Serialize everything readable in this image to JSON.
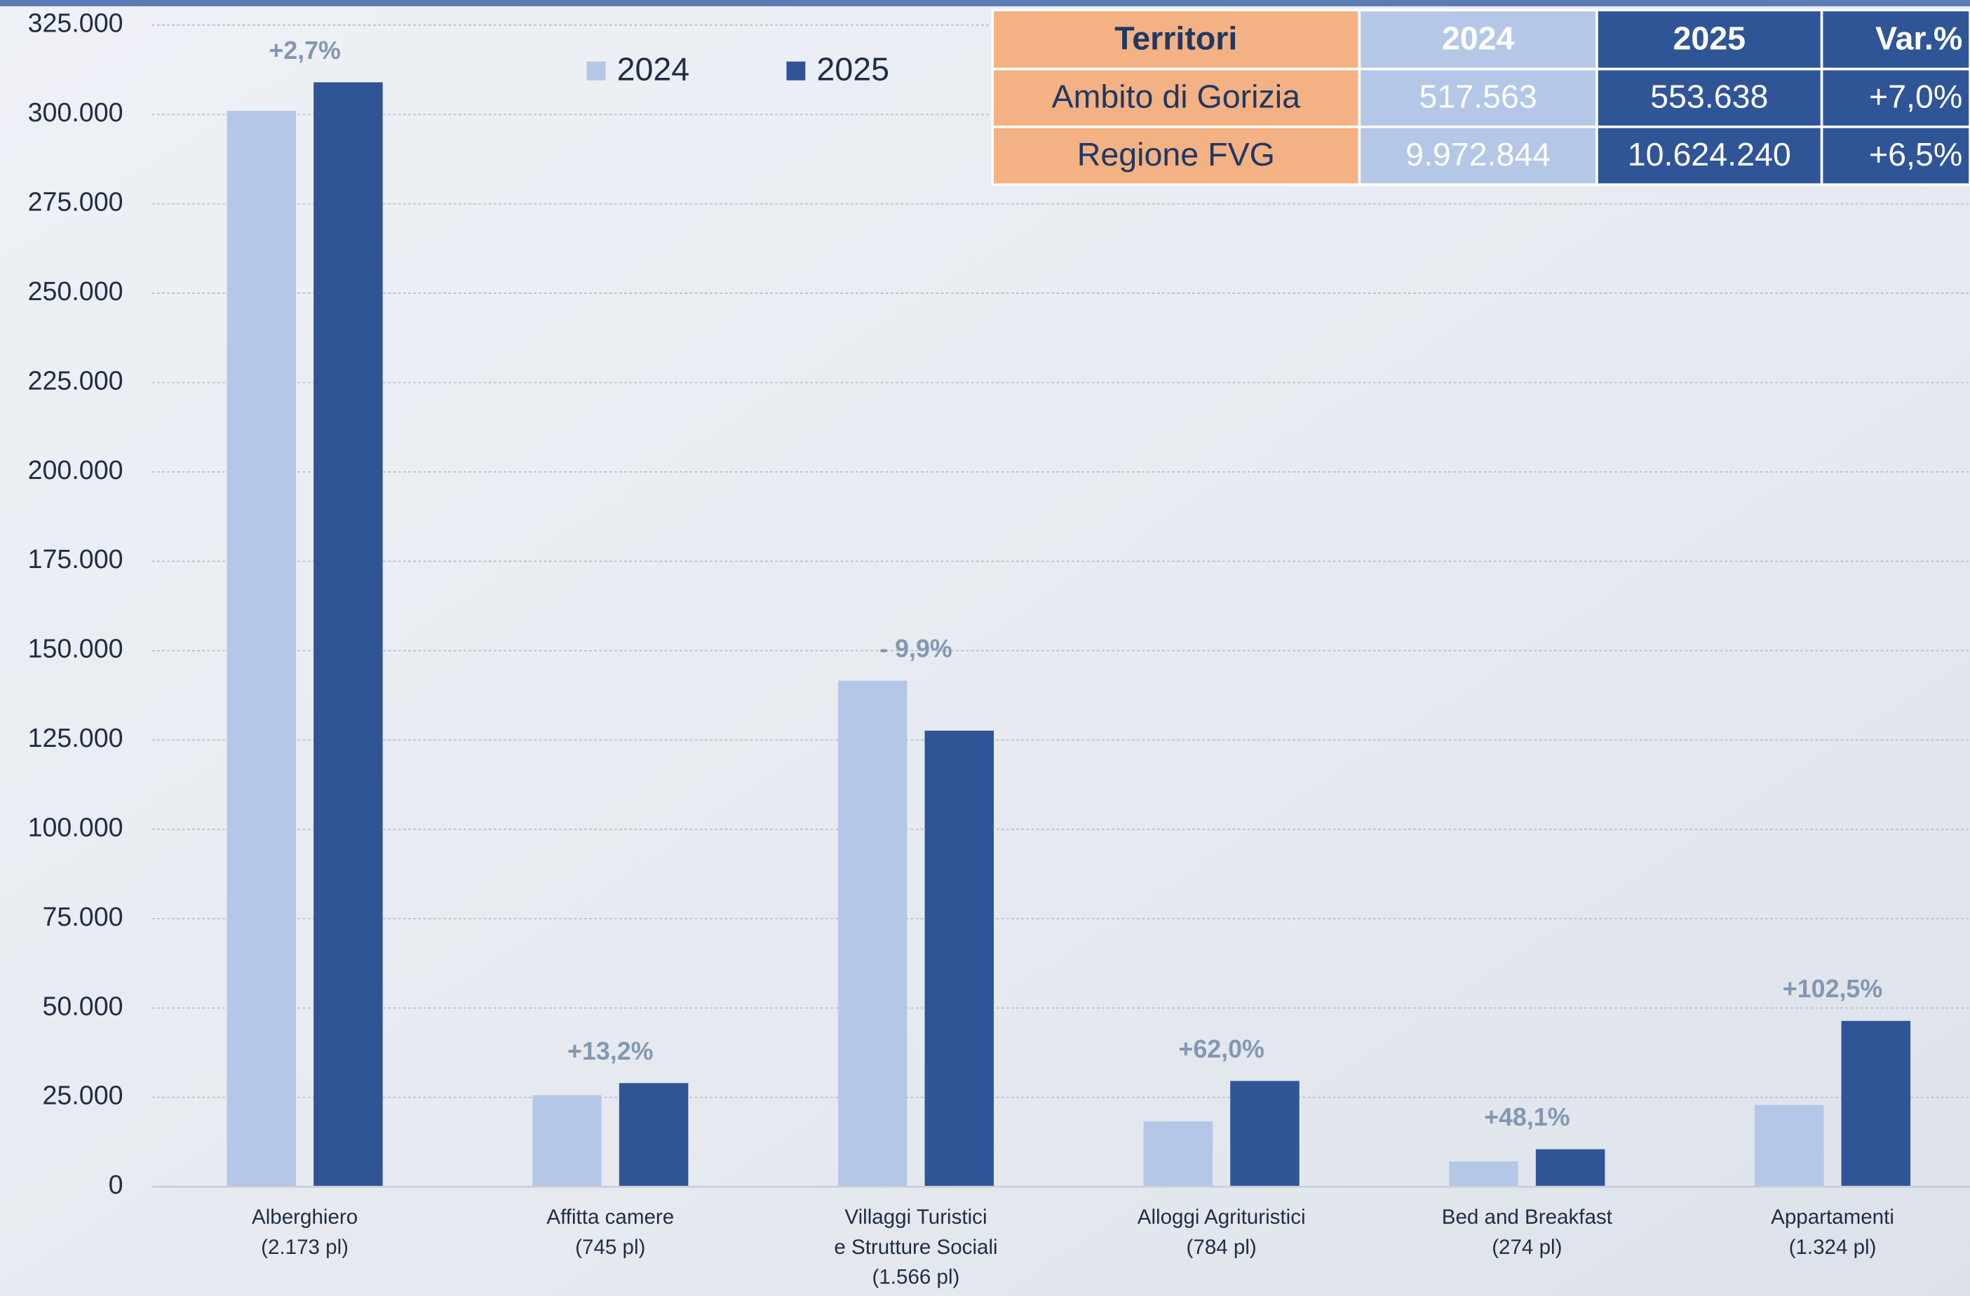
{
  "chart_data": {
    "type": "bar",
    "categories": [
      [
        "Alberghiero",
        "(2.173 pl)"
      ],
      [
        "Affitta camere",
        "(745 pl)"
      ],
      [
        "Villaggi Turistici",
        "e Strutture Sociali",
        "(1.566 pl)"
      ],
      [
        "Alloggi Agrituristici",
        "(784 pl)"
      ],
      [
        "Bed and Breakfast",
        "(274 pl)"
      ],
      [
        "Appartamenti",
        "(1.324 pl)"
      ]
    ],
    "series": [
      {
        "name": "2024",
        "color": "#b4c7e7",
        "values": [
          301000,
          25600,
          141600,
          18300,
          7100,
          22900
        ]
      },
      {
        "name": "2025",
        "color": "#2f5597",
        "values": [
          309000,
          29000,
          127600,
          29600,
          10500,
          46400
        ]
      }
    ],
    "variations": [
      "+2,7%",
      "+13,2%",
      "- 9,9%",
      "+62,0%",
      "+48,1%",
      "+102,5%"
    ],
    "ylim": [
      0,
      325000
    ],
    "yticks": [
      0,
      {
        "value": 25000,
        "label": "25.000"
      },
      {
        "value": 50000,
        "label": "50.000"
      },
      {
        "value": 75000,
        "label": "75.000"
      },
      {
        "value": 100000,
        "label": "100.000"
      },
      {
        "value": 125000,
        "label": "125.000"
      },
      {
        "value": 150000,
        "label": "150.000"
      },
      {
        "value": 175000,
        "label": "175.000"
      },
      {
        "value": 200000,
        "label": "200.000"
      },
      {
        "value": 225000,
        "label": "225.000"
      },
      {
        "value": 250000,
        "label": "250.000"
      },
      {
        "value": 275000,
        "label": "275.000"
      },
      {
        "value": 300000,
        "label": "300.000"
      },
      {
        "value": 325000,
        "label": "325.000"
      }
    ],
    "grid": true
  },
  "table": {
    "header": [
      "Territori",
      "2024",
      "2025",
      "Var.%"
    ],
    "rows": [
      [
        "Ambito di Gorizia",
        "517.563",
        "553.638",
        "+7,0%"
      ],
      [
        "Regione FVG",
        "9.972.844",
        "10.624.240",
        "+6,5%"
      ]
    ]
  }
}
